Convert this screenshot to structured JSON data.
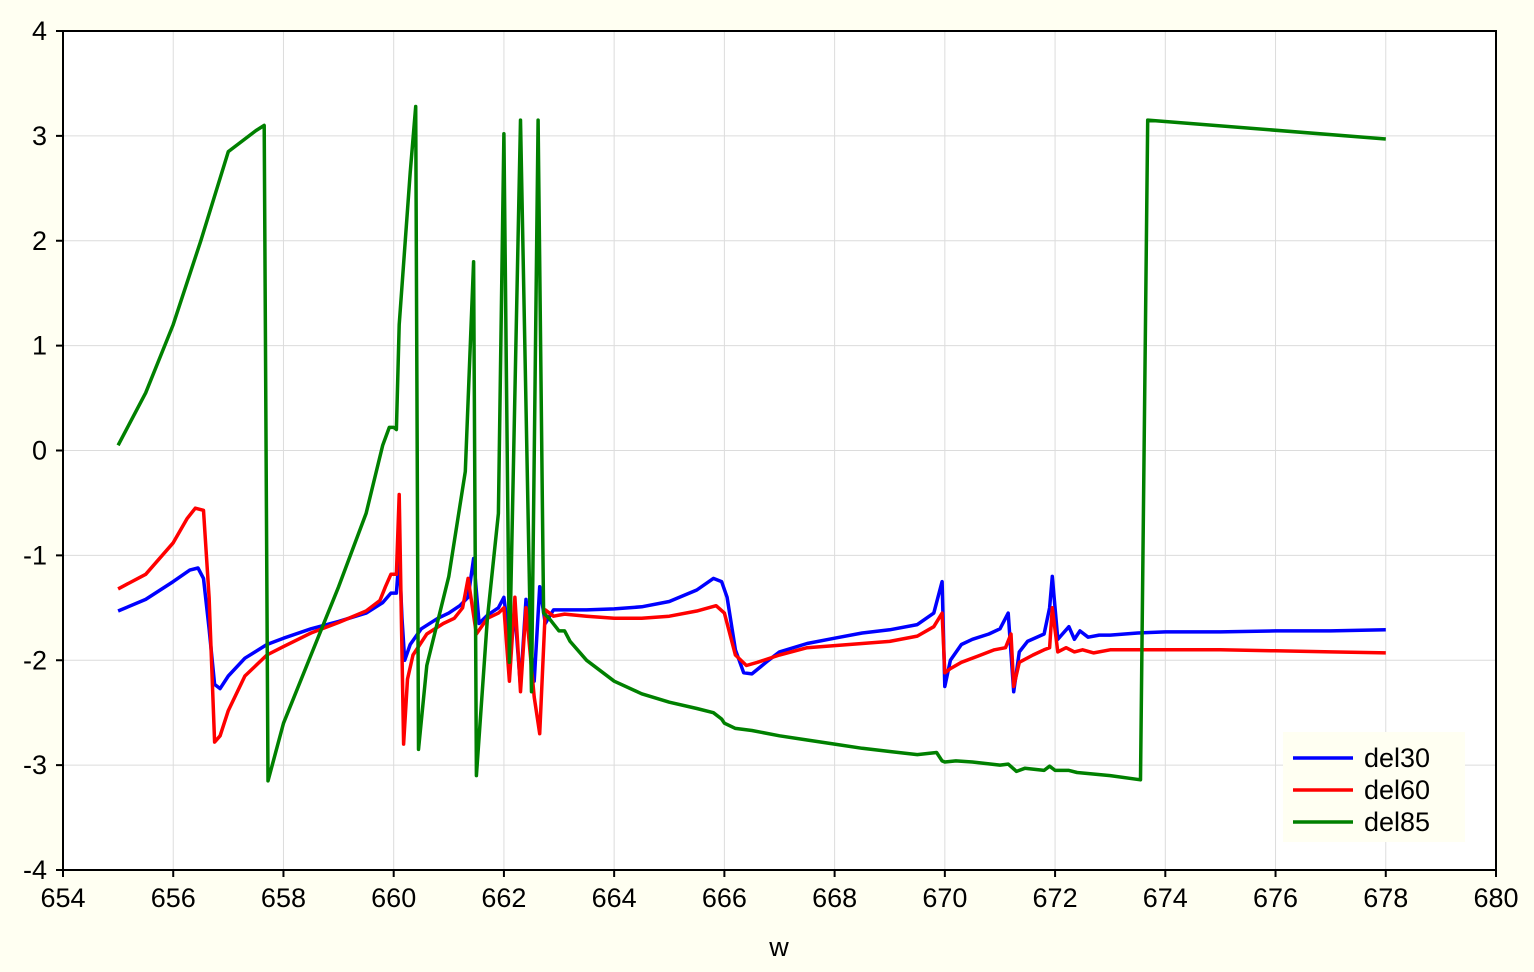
{
  "chart_data": {
    "type": "line",
    "title": "",
    "xlabel": "w",
    "ylabel": "",
    "xlim": [
      654,
      680
    ],
    "ylim": [
      -4,
      4
    ],
    "xticks": [
      654,
      656,
      658,
      660,
      662,
      664,
      666,
      668,
      670,
      672,
      674,
      676,
      678,
      680
    ],
    "yticks": [
      -4,
      -3,
      -2,
      -1,
      0,
      1,
      2,
      3,
      4
    ],
    "grid": true,
    "legend_position": "bottom-right",
    "colors": {
      "background": "#fffff2",
      "plot_background": "#ffffff",
      "legend_background": "#fffff2"
    },
    "series": [
      {
        "name": "del30",
        "color": "#0000ff",
        "x": [
          655.0,
          655.5,
          656.0,
          656.3,
          656.45,
          656.55,
          656.65,
          656.75,
          656.85,
          657.0,
          657.3,
          657.7,
          658.0,
          658.5,
          659.0,
          659.5,
          659.8,
          659.95,
          660.05,
          660.1,
          660.15,
          660.2,
          660.3,
          660.5,
          660.8,
          661.0,
          661.2,
          661.35,
          661.45,
          661.55,
          661.7,
          661.9,
          662.0,
          662.1,
          662.2,
          662.3,
          662.4,
          662.55,
          662.65,
          662.75,
          662.9,
          663.1,
          663.5,
          664.0,
          664.5,
          665.0,
          665.5,
          665.8,
          665.95,
          666.05,
          666.2,
          666.35,
          666.5,
          666.8,
          667.0,
          667.5,
          668.0,
          668.5,
          669.0,
          669.5,
          669.8,
          669.95,
          670.0,
          670.1,
          670.3,
          670.5,
          670.8,
          671.0,
          671.15,
          671.25,
          671.35,
          671.5,
          671.8,
          671.9,
          671.95,
          672.05,
          672.25,
          672.35,
          672.45,
          672.6,
          672.8,
          673.0,
          673.5,
          674.0,
          675.0,
          676.0,
          677.0,
          678.0
        ],
        "y": [
          -1.53,
          -1.42,
          -1.25,
          -1.14,
          -1.12,
          -1.22,
          -1.7,
          -2.23,
          -2.27,
          -2.15,
          -1.98,
          -1.85,
          -1.79,
          -1.7,
          -1.63,
          -1.55,
          -1.45,
          -1.36,
          -1.36,
          -1.0,
          -1.6,
          -2.0,
          -1.85,
          -1.7,
          -1.6,
          -1.55,
          -1.48,
          -1.4,
          -1.03,
          -1.65,
          -1.57,
          -1.5,
          -1.4,
          -1.82,
          -1.55,
          -2.25,
          -1.42,
          -2.2,
          -1.3,
          -1.65,
          -1.52,
          -1.52,
          -1.52,
          -1.51,
          -1.49,
          -1.44,
          -1.33,
          -1.22,
          -1.25,
          -1.4,
          -1.9,
          -2.12,
          -2.13,
          -2.0,
          -1.92,
          -1.84,
          -1.79,
          -1.74,
          -1.71,
          -1.66,
          -1.55,
          -1.25,
          -2.25,
          -2.0,
          -1.85,
          -1.8,
          -1.75,
          -1.7,
          -1.55,
          -2.3,
          -1.92,
          -1.82,
          -1.75,
          -1.5,
          -1.2,
          -1.8,
          -1.68,
          -1.8,
          -1.72,
          -1.78,
          -1.76,
          -1.76,
          -1.74,
          -1.73,
          -1.73,
          -1.72,
          -1.72,
          -1.71
        ]
      },
      {
        "name": "del60",
        "color": "#ff0000",
        "x": [
          655.0,
          655.5,
          656.0,
          656.25,
          656.4,
          656.55,
          656.65,
          656.75,
          656.85,
          657.0,
          657.3,
          657.7,
          658.0,
          658.5,
          659.0,
          659.5,
          659.75,
          659.85,
          659.95,
          660.05,
          660.1,
          660.18,
          660.25,
          660.35,
          660.6,
          660.9,
          661.1,
          661.25,
          661.35,
          661.5,
          661.7,
          661.9,
          662.0,
          662.1,
          662.2,
          662.3,
          662.4,
          662.55,
          662.65,
          662.75,
          662.9,
          663.1,
          663.5,
          664.0,
          664.5,
          665.0,
          665.5,
          665.85,
          666.0,
          666.2,
          666.4,
          666.6,
          667.0,
          667.5,
          668.0,
          668.5,
          669.0,
          669.5,
          669.8,
          669.95,
          670.0,
          670.1,
          670.3,
          670.6,
          670.9,
          671.1,
          671.2,
          671.25,
          671.35,
          671.6,
          671.8,
          671.9,
          671.95,
          672.05,
          672.2,
          672.35,
          672.5,
          672.7,
          673.0,
          673.5,
          674.0,
          675.0,
          676.0,
          677.0,
          678.0
        ],
        "y": [
          -1.32,
          -1.18,
          -0.88,
          -0.65,
          -0.55,
          -0.57,
          -1.4,
          -2.78,
          -2.72,
          -2.48,
          -2.15,
          -1.95,
          -1.87,
          -1.74,
          -1.64,
          -1.53,
          -1.43,
          -1.3,
          -1.18,
          -1.18,
          -0.42,
          -2.8,
          -2.18,
          -1.95,
          -1.75,
          -1.65,
          -1.6,
          -1.5,
          -1.22,
          -1.75,
          -1.6,
          -1.55,
          -1.5,
          -2.2,
          -1.4,
          -2.3,
          -1.5,
          -2.35,
          -2.7,
          -1.52,
          -1.58,
          -1.56,
          -1.58,
          -1.6,
          -1.6,
          -1.58,
          -1.53,
          -1.48,
          -1.55,
          -1.95,
          -2.05,
          -2.02,
          -1.95,
          -1.88,
          -1.86,
          -1.84,
          -1.82,
          -1.77,
          -1.68,
          -1.55,
          -2.12,
          -2.08,
          -2.02,
          -1.96,
          -1.9,
          -1.88,
          -1.75,
          -2.25,
          -2.02,
          -1.95,
          -1.9,
          -1.88,
          -1.5,
          -1.92,
          -1.88,
          -1.92,
          -1.9,
          -1.93,
          -1.9,
          -1.9,
          -1.9,
          -1.9,
          -1.91,
          -1.92,
          -1.93
        ]
      },
      {
        "name": "del85",
        "color": "#008000",
        "x": [
          655.0,
          655.5,
          656.0,
          656.5,
          657.0,
          657.5,
          657.65,
          657.72,
          658.0,
          658.5,
          659.0,
          659.5,
          659.8,
          659.92,
          660.0,
          660.05,
          660.1,
          660.3,
          660.4,
          660.45,
          660.6,
          661.0,
          661.3,
          661.45,
          661.5,
          661.7,
          661.9,
          662.0,
          662.1,
          662.3,
          662.5,
          662.62,
          662.72,
          662.82,
          663.0,
          663.1,
          663.2,
          663.5,
          664.0,
          664.5,
          665.0,
          665.5,
          665.8,
          665.95,
          666.0,
          666.2,
          666.5,
          667.0,
          667.5,
          668.0,
          668.5,
          669.0,
          669.5,
          669.85,
          669.95,
          670.0,
          670.2,
          670.5,
          671.0,
          671.15,
          671.3,
          671.45,
          671.8,
          671.9,
          672.0,
          672.25,
          672.4,
          673.0,
          673.55,
          673.68,
          678.0
        ],
        "y": [
          0.05,
          0.55,
          1.2,
          2.0,
          2.85,
          3.05,
          3.1,
          -3.15,
          -2.6,
          -1.95,
          -1.3,
          -0.6,
          0.05,
          0.22,
          0.22,
          0.2,
          1.2,
          2.65,
          3.28,
          -2.85,
          -2.05,
          -1.2,
          -0.2,
          1.8,
          -3.1,
          -1.6,
          -0.6,
          3.02,
          -2.02,
          3.15,
          -2.3,
          3.15,
          -1.55,
          -1.6,
          -1.72,
          -1.72,
          -1.82,
          -2.0,
          -2.2,
          -2.32,
          -2.4,
          -2.46,
          -2.5,
          -2.56,
          -2.6,
          -2.65,
          -2.67,
          -2.72,
          -2.76,
          -2.8,
          -2.84,
          -2.87,
          -2.9,
          -2.88,
          -2.96,
          -2.97,
          -2.96,
          -2.97,
          -3.0,
          -2.99,
          -3.06,
          -3.03,
          -3.05,
          -3.01,
          -3.05,
          -3.05,
          -3.07,
          -3.1,
          -3.14,
          3.15,
          2.97
        ]
      }
    ]
  }
}
